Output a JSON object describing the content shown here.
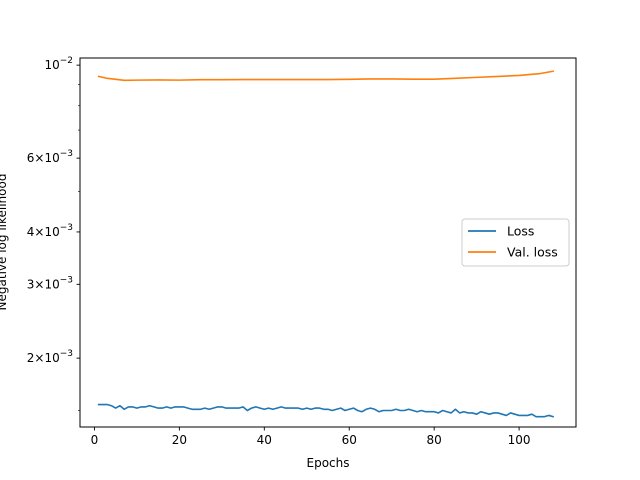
{
  "chart_data": {
    "type": "line",
    "title": "",
    "xlabel": "Epochs",
    "ylabel": "Negative log likelihood",
    "yscale": "log",
    "xlim": [
      -3.4,
      113.4
    ],
    "ylim": [
      0.00137,
      0.0104
    ],
    "xticks": [
      0,
      20,
      40,
      60,
      80,
      100
    ],
    "yticks": [
      {
        "value": 0.002,
        "mantissa": "2",
        "base": "10",
        "exp": "−3"
      },
      {
        "value": 0.003,
        "mantissa": "3",
        "base": "10",
        "exp": "−3"
      },
      {
        "value": 0.004,
        "mantissa": "4",
        "base": "10",
        "exp": "−3"
      },
      {
        "value": 0.006,
        "mantissa": "6",
        "base": "10",
        "exp": "−3"
      },
      {
        "value": 0.01,
        "mantissa": "",
        "base": "10",
        "exp": "−2"
      }
    ],
    "minor_yticks": [
      0.0015,
      0.005,
      0.007,
      0.008,
      0.009
    ],
    "grid": false,
    "legend_position": "center-right",
    "series": [
      {
        "name": "Loss",
        "color": "#1f77b4",
        "x": [
          1,
          2,
          3,
          4,
          5,
          6,
          7,
          8,
          9,
          10,
          11,
          12,
          13,
          14,
          15,
          16,
          17,
          18,
          19,
          20,
          21,
          22,
          23,
          24,
          25,
          26,
          27,
          28,
          29,
          30,
          31,
          32,
          33,
          34,
          35,
          36,
          37,
          38,
          39,
          40,
          41,
          42,
          43,
          44,
          45,
          46,
          47,
          48,
          49,
          50,
          51,
          52,
          53,
          54,
          55,
          56,
          57,
          58,
          59,
          60,
          61,
          62,
          63,
          64,
          65,
          66,
          67,
          68,
          69,
          70,
          71,
          72,
          73,
          74,
          75,
          76,
          77,
          78,
          79,
          80,
          81,
          82,
          83,
          84,
          85,
          86,
          87,
          88,
          89,
          90,
          91,
          92,
          93,
          94,
          95,
          96,
          97,
          98,
          99,
          100,
          101,
          102,
          103,
          104,
          105,
          106,
          107,
          108
        ],
        "y": [
          0.00155,
          0.00155,
          0.00155,
          0.00154,
          0.00152,
          0.00154,
          0.00151,
          0.00153,
          0.00153,
          0.00152,
          0.00153,
          0.00153,
          0.00154,
          0.00153,
          0.00152,
          0.00152,
          0.00153,
          0.00152,
          0.00153,
          0.00153,
          0.00153,
          0.00152,
          0.00151,
          0.00151,
          0.00151,
          0.00152,
          0.00151,
          0.00152,
          0.00153,
          0.00153,
          0.00152,
          0.00152,
          0.00152,
          0.00152,
          0.00153,
          0.0015,
          0.00152,
          0.00153,
          0.00152,
          0.00151,
          0.00152,
          0.00151,
          0.00152,
          0.00153,
          0.00152,
          0.00152,
          0.00152,
          0.00152,
          0.00151,
          0.00152,
          0.00151,
          0.00152,
          0.00152,
          0.00151,
          0.00151,
          0.0015,
          0.00151,
          0.00152,
          0.0015,
          0.00151,
          0.00152,
          0.0015,
          0.00149,
          0.00151,
          0.00152,
          0.00151,
          0.00149,
          0.0015,
          0.0015,
          0.0015,
          0.00151,
          0.0015,
          0.0015,
          0.00151,
          0.0015,
          0.00149,
          0.0015,
          0.00149,
          0.00149,
          0.00149,
          0.00148,
          0.0015,
          0.00149,
          0.00148,
          0.00151,
          0.00148,
          0.00149,
          0.00148,
          0.00148,
          0.00147,
          0.00149,
          0.00148,
          0.00147,
          0.00148,
          0.00148,
          0.00147,
          0.00146,
          0.00148,
          0.00147,
          0.00146,
          0.00146,
          0.00146,
          0.00147,
          0.00145,
          0.00145,
          0.00145,
          0.00146,
          0.00145
        ]
      },
      {
        "name": "Val. loss",
        "color": "#ff7f0e",
        "x": [
          1,
          3,
          5,
          7,
          10,
          15,
          20,
          25,
          30,
          35,
          40,
          45,
          50,
          55,
          60,
          65,
          70,
          75,
          80,
          85,
          90,
          95,
          100,
          105,
          108
        ],
        "y": [
          0.0094,
          0.0093,
          0.00925,
          0.0092,
          0.00921,
          0.00922,
          0.00921,
          0.00923,
          0.00923,
          0.00924,
          0.00924,
          0.00924,
          0.00924,
          0.00924,
          0.00925,
          0.00927,
          0.00927,
          0.00926,
          0.00926,
          0.0093,
          0.00935,
          0.0094,
          0.00945,
          0.00955,
          0.00967
        ]
      }
    ]
  }
}
